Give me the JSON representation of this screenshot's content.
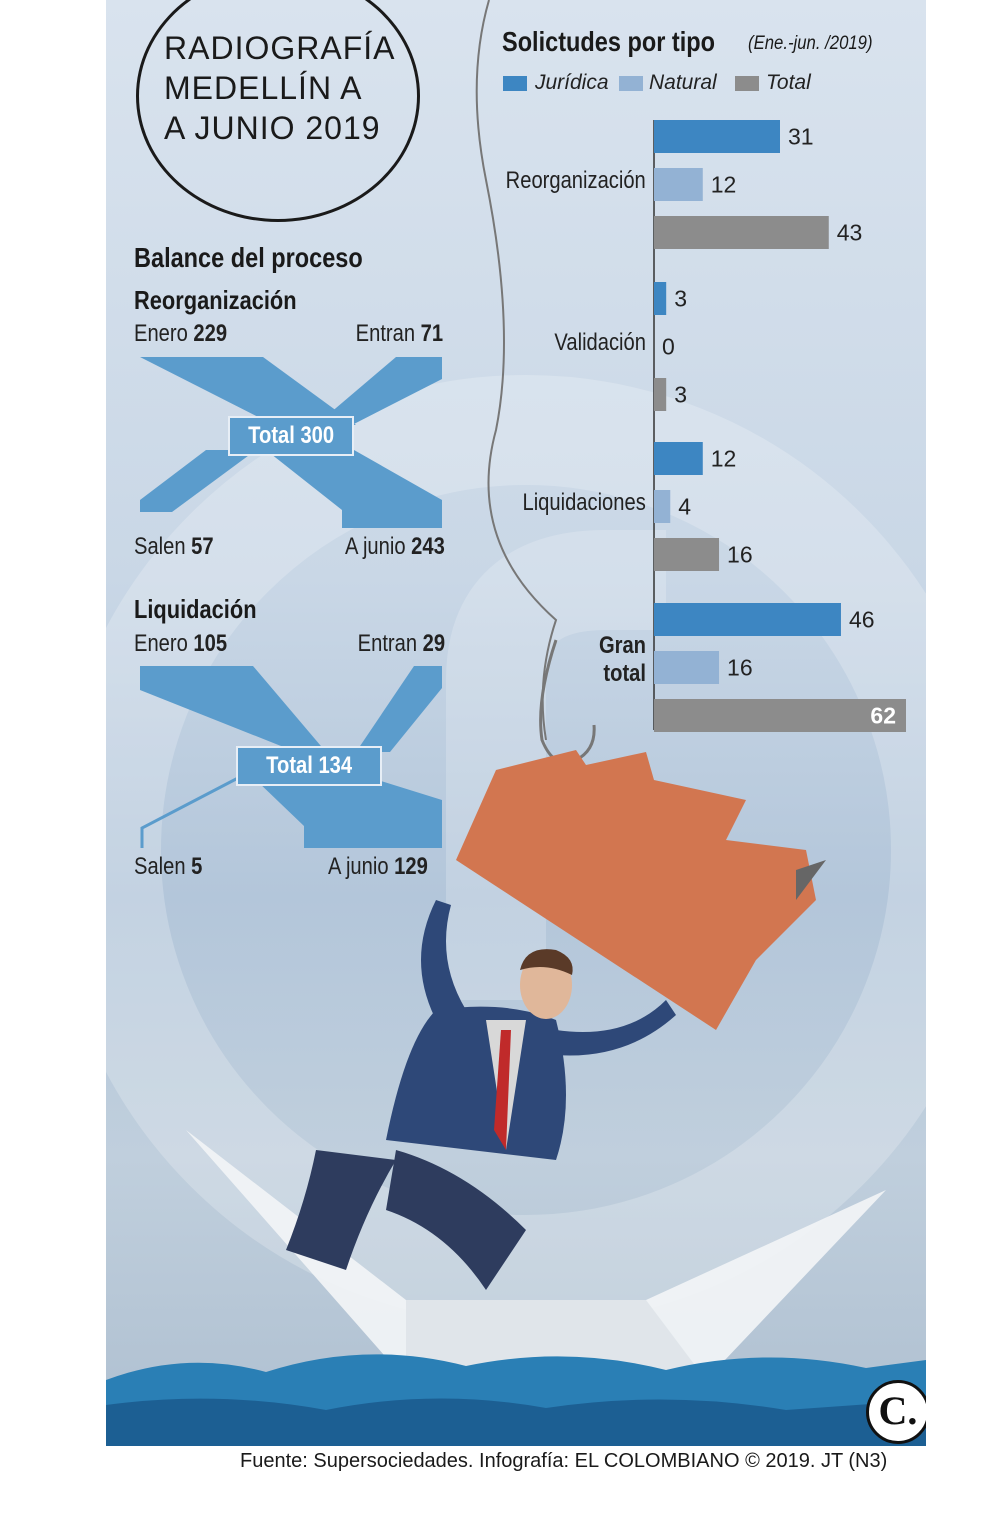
{
  "header": {
    "title_lines": [
      "RADIOGRAFÍA",
      "MEDELLÍN A",
      "A JUNIO 2019"
    ]
  },
  "balance": {
    "heading": "Balance del proceso",
    "reorganizacion": {
      "title": "Reorganización",
      "enero_label": "Enero",
      "enero_value": "229",
      "entran_label": "Entran",
      "entran_value": "71",
      "total_text": "Total 300",
      "salen_label": "Salen",
      "salen_value": "57",
      "ajunio_label": "A junio",
      "ajunio_value": "243",
      "flows": {
        "enero": 229,
        "entran": 71,
        "total": 300,
        "salen": 57,
        "ajunio": 243
      }
    },
    "liquidacion": {
      "title": "Liquidación",
      "enero_label": "Enero",
      "enero_value": "105",
      "entran_label": "Entran",
      "entran_value": "29",
      "total_text": "Total 134",
      "salen_label": "Salen",
      "salen_value": "5",
      "ajunio_label": "A junio",
      "ajunio_value": "129",
      "flows": {
        "enero": 105,
        "entran": 29,
        "total": 134,
        "salen": 5,
        "ajunio": 129
      }
    }
  },
  "chart_data": {
    "type": "bar",
    "orientation": "horizontal",
    "title": "Solictudes por tipo",
    "subtitle": "(Ene.-jun. /2019)",
    "categories": [
      "Reorganización",
      "Validación",
      "Liquidaciones",
      "Gran total"
    ],
    "series": [
      {
        "name": "Jurídica",
        "values": [
          31,
          3,
          12,
          46
        ],
        "color": "#3d86c2"
      },
      {
        "name": "Natural",
        "values": [
          12,
          0,
          4,
          16
        ],
        "color": "#93b2d4"
      },
      {
        "name": "Total",
        "values": [
          43,
          3,
          16,
          62
        ],
        "color": "#8c8c8c"
      }
    ],
    "xlim": [
      0,
      62
    ],
    "legend_position": "top",
    "grid": false
  },
  "source": "Fuente: Supersociedades. Infografía: EL COLOMBIANO © 2019. JT (N3)",
  "logo_text": "C.",
  "colors": {
    "flow": "#5b9ccc",
    "juridica": "#3d86c2",
    "natural": "#93b2d4",
    "total": "#8c8c8c"
  }
}
